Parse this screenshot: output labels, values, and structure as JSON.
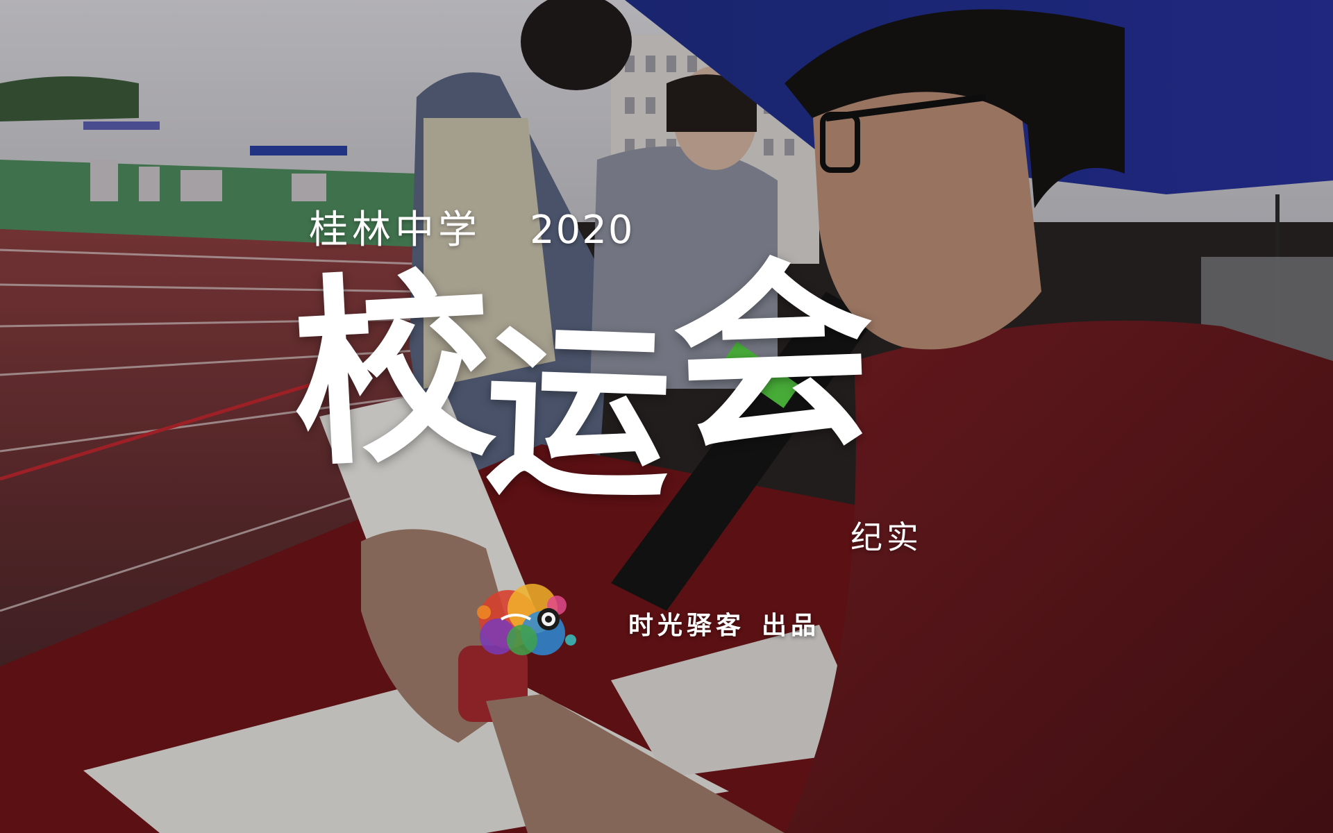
{
  "video_cover": {
    "school_line": {
      "school_name": "桂林中学",
      "year": "2020"
    },
    "main_title": {
      "char1": "校",
      "char2": "运",
      "char3": "会"
    },
    "subtitle": "纪实",
    "credit": {
      "studio": "时光驿客",
      "produced": "出品"
    },
    "logo_icon": "paint-splash-camera-logo-icon"
  }
}
